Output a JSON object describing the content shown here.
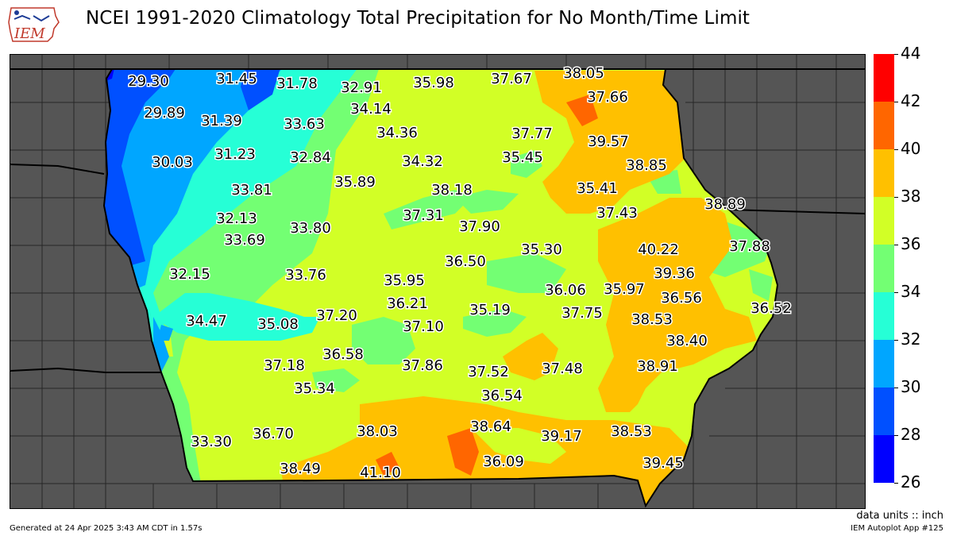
{
  "title": "NCEI 1991-2020 Climatology Total Precipitation for No Month/Time Limit",
  "logo_text": "IEM",
  "units_text": "data units :: inch",
  "generated_text": "Generated at 24 Apr 2025 3:43 AM CDT in 1.57s",
  "app_text": "IEM Autoplot App #125",
  "colorbar": {
    "levels": [
      "26",
      "28",
      "30",
      "32",
      "34",
      "36",
      "38",
      "40",
      "42",
      "44"
    ],
    "colors": [
      "#0000ff",
      "#0050ff",
      "#00a6ff",
      "#26ffd6",
      "#73ff73",
      "#d2ff26",
      "#ffc000",
      "#ff6600",
      "#ff0000"
    ]
  },
  "colors": {
    "background": "#555555",
    "county_fill": "#555555",
    "county_line": "#222222",
    "state_line": "#000000"
  },
  "stations": [
    "29.30",
    "31.45",
    "31.78",
    "32.91",
    "35.98",
    "37.67",
    "38.05",
    "29.89",
    "34.14",
    "37.66",
    "31.39",
    "33.63",
    "34.36",
    "37.77",
    "39.57",
    "31.23",
    "32.84",
    "35.45",
    "30.03",
    "34.32",
    "38.85",
    "35.89",
    "38.18",
    "35.41",
    "33.81",
    "38.89",
    "37.31",
    "37.43",
    "32.13",
    "37.90",
    "33.80",
    "33.69",
    "35.30",
    "40.22",
    "37.88",
    "32.15",
    "33.76",
    "36.50",
    "39.36",
    "35.95",
    "36.06",
    "35.97",
    "36.56",
    "36.21",
    "36.52",
    "34.47",
    "35.08",
    "37.20",
    "35.19",
    "37.75",
    "38.53",
    "37.10",
    "38.40",
    "36.58",
    "37.18",
    "37.86",
    "37.52",
    "37.48",
    "38.91",
    "35.34",
    "36.54",
    "33.30",
    "36.70",
    "38.03",
    "38.64",
    "39.17",
    "38.53",
    "36.09",
    "39.45",
    "38.49",
    "41.10"
  ]
}
